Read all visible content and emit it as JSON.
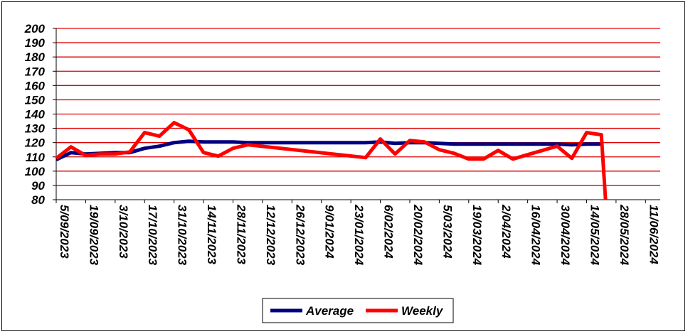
{
  "chart_data": {
    "type": "line",
    "title": "",
    "xlabel": "",
    "ylabel": "",
    "ylim": [
      80,
      200
    ],
    "y_ticks": [
      80,
      90,
      100,
      110,
      120,
      130,
      140,
      150,
      160,
      170,
      180,
      190,
      200
    ],
    "x_ticks": [
      "5/09/2023",
      "19/09/2023",
      "3/10/2023",
      "17/10/2023",
      "31/10/2023",
      "14/11/2023",
      "28/11/2023",
      "12/12/2023",
      "26/12/2023",
      "9/01/2024",
      "23/01/2024",
      "6/02/2024",
      "20/02/2024",
      "5/03/2024",
      "19/03/2024",
      "2/04/2024",
      "16/04/2024",
      "30/04/2024",
      "14/05/2024",
      "28/05/2024",
      "11/06/2024"
    ],
    "xlim": [
      "2023-09-05",
      "2024-06-18"
    ],
    "grid": {
      "horizontal": true,
      "vertical": false,
      "color": "#e00000"
    },
    "legend_position": "bottom",
    "series": [
      {
        "name": "Average",
        "color": "#00007f",
        "points": [
          [
            "2023-09-05",
            108
          ],
          [
            "2023-09-12",
            113
          ],
          [
            "2023-09-19",
            112
          ],
          [
            "2023-09-26",
            112.5
          ],
          [
            "2023-10-03",
            113
          ],
          [
            "2023-10-10",
            113
          ],
          [
            "2023-10-17",
            116
          ],
          [
            "2023-10-24",
            117.5
          ],
          [
            "2023-10-31",
            120
          ],
          [
            "2023-11-07",
            121
          ],
          [
            "2023-11-14",
            120.5
          ],
          [
            "2023-11-21",
            120.5
          ],
          [
            "2023-11-28",
            120.5
          ],
          [
            "2023-12-05",
            120
          ],
          [
            "2023-12-12",
            120
          ],
          [
            "2024-01-30",
            120
          ],
          [
            "2024-02-06",
            120.5
          ],
          [
            "2024-02-13",
            119.5
          ],
          [
            "2024-02-20",
            120
          ],
          [
            "2024-02-27",
            120
          ],
          [
            "2024-03-05",
            119.5
          ],
          [
            "2024-03-12",
            119
          ],
          [
            "2024-03-19",
            119
          ],
          [
            "2024-04-30",
            119
          ],
          [
            "2024-05-07",
            118.5
          ],
          [
            "2024-05-14",
            119
          ],
          [
            "2024-05-21",
            119
          ]
        ]
      },
      {
        "name": "Weekly",
        "color": "#ff0000",
        "points": [
          [
            "2023-09-05",
            109
          ],
          [
            "2023-09-12",
            117
          ],
          [
            "2023-09-19",
            111
          ],
          [
            "2023-09-26",
            112
          ],
          [
            "2023-10-03",
            112
          ],
          [
            "2023-10-10",
            113.5
          ],
          [
            "2023-10-17",
            127
          ],
          [
            "2023-10-24",
            124.5
          ],
          [
            "2023-10-31",
            134
          ],
          [
            "2023-11-07",
            129
          ],
          [
            "2023-11-14",
            113
          ],
          [
            "2023-11-21",
            110.5
          ],
          [
            "2023-11-28",
            116
          ],
          [
            "2023-12-05",
            118.5
          ],
          [
            "2024-01-30",
            109.5
          ],
          [
            "2024-02-06",
            122.5
          ],
          [
            "2024-02-13",
            112
          ],
          [
            "2024-02-20",
            121.5
          ],
          [
            "2024-02-27",
            120.5
          ],
          [
            "2024-03-05",
            115
          ],
          [
            "2024-03-12",
            112.5
          ],
          [
            "2024-03-19",
            108.5
          ],
          [
            "2024-03-26",
            108.5
          ],
          [
            "2024-04-02",
            114.5
          ],
          [
            "2024-04-09",
            108.5
          ],
          [
            "2024-04-16",
            111.5
          ],
          [
            "2024-04-30",
            117.5
          ],
          [
            "2024-05-07",
            109
          ],
          [
            "2024-05-14",
            127
          ],
          [
            "2024-05-21",
            125.5
          ],
          [
            "2024-05-23",
            80
          ]
        ]
      }
    ]
  }
}
